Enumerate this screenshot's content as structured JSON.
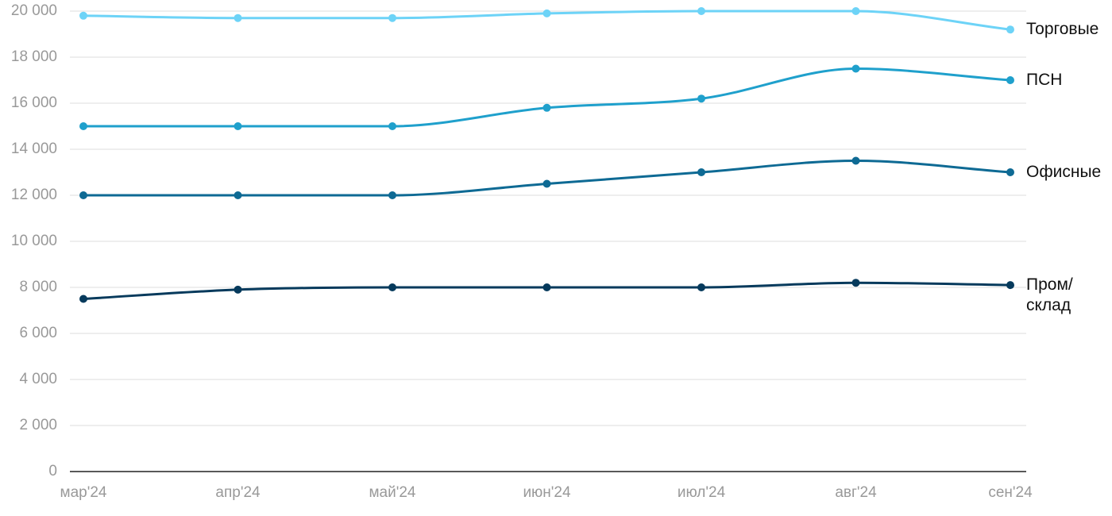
{
  "chart_data": {
    "type": "line",
    "categories": [
      "мар'24",
      "апр'24",
      "май'24",
      "июн'24",
      "июл'24",
      "авг'24",
      "сен'24"
    ],
    "series": [
      {
        "name": "Торговые",
        "color": "#6dd3f7",
        "values": [
          19800,
          19700,
          19700,
          19900,
          20000,
          20000,
          19200
        ]
      },
      {
        "name": "ПСН",
        "color": "#1fa0cc",
        "values": [
          15000,
          15000,
          15000,
          15800,
          16200,
          17500,
          17000
        ]
      },
      {
        "name": "Офисные",
        "color": "#0e6a94",
        "values": [
          12000,
          12000,
          12000,
          12500,
          13000,
          13500,
          13000
        ]
      },
      {
        "name": "Пром/\nсклад",
        "color": "#063a5c",
        "values": [
          7500,
          7900,
          8000,
          8000,
          8000,
          8200,
          8100
        ]
      }
    ],
    "ylim": [
      0,
      20000
    ],
    "yticks": [
      0,
      {
        "value": 2000,
        "label": "2 000"
      },
      {
        "value": 4000,
        "label": "4 000"
      },
      {
        "value": 6000,
        "label": "6 000"
      },
      {
        "value": 8000,
        "label": "8 000"
      },
      {
        "value": 10000,
        "label": "10 000"
      },
      {
        "value": 12000,
        "label": "12 000"
      },
      {
        "value": 14000,
        "label": "14 000"
      },
      {
        "value": 16000,
        "label": "16 000"
      },
      {
        "value": 18000,
        "label": "18 000"
      },
      {
        "value": 20000,
        "label": "20 000"
      }
    ],
    "grid": true
  }
}
